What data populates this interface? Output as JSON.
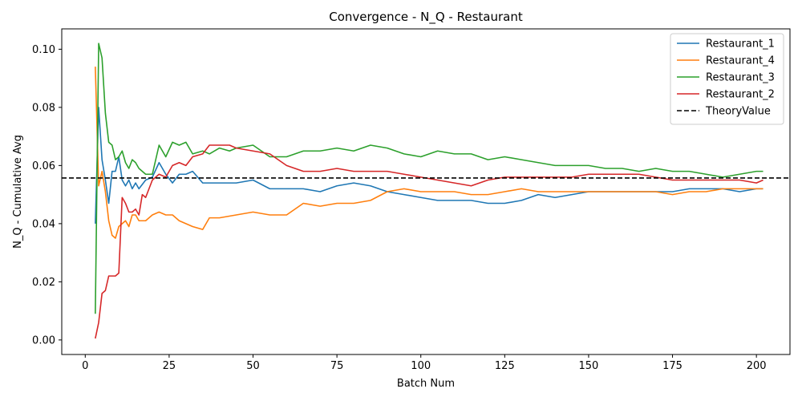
{
  "chart_data": {
    "type": "line",
    "title": "Convergence - N_Q - Restaurant",
    "xlabel": "Batch Num",
    "ylabel": "N_Q - Cumulative Avg",
    "xlim": [
      -7,
      210
    ],
    "ylim": [
      -0.005,
      0.107
    ],
    "xticks": [
      0,
      25,
      50,
      75,
      100,
      125,
      150,
      175,
      200
    ],
    "xtick_labels": [
      "0",
      "25",
      "50",
      "75",
      "100",
      "125",
      "150",
      "175",
      "200"
    ],
    "yticks": [
      0.0,
      0.02,
      0.04,
      0.06,
      0.08,
      0.1
    ],
    "ytick_labels": [
      "0.00",
      "0.02",
      "0.04",
      "0.06",
      "0.08",
      "0.10"
    ],
    "grid": false,
    "legend_position": "top-right",
    "reference_line": {
      "name": "TheoryValue",
      "y": 0.0557,
      "color": "#000000",
      "style": "dashed"
    },
    "series": [
      {
        "name": "Restaurant_1",
        "color": "#1f77b4",
        "x": [
          3,
          4,
          5,
          6,
          7,
          8,
          9,
          10,
          11,
          12,
          13,
          14,
          15,
          16,
          18,
          20,
          22,
          24,
          26,
          28,
          30,
          32,
          35,
          40,
          45,
          50,
          55,
          60,
          65,
          70,
          75,
          80,
          85,
          90,
          95,
          100,
          105,
          110,
          115,
          120,
          125,
          130,
          135,
          140,
          145,
          150,
          155,
          160,
          165,
          170,
          175,
          180,
          185,
          190,
          195,
          200,
          202
        ],
        "values": [
          0.04,
          0.08,
          0.062,
          0.055,
          0.047,
          0.058,
          0.058,
          0.063,
          0.055,
          0.053,
          0.055,
          0.052,
          0.054,
          0.052,
          0.055,
          0.056,
          0.061,
          0.057,
          0.054,
          0.057,
          0.057,
          0.058,
          0.054,
          0.054,
          0.054,
          0.055,
          0.052,
          0.052,
          0.052,
          0.051,
          0.053,
          0.054,
          0.053,
          0.051,
          0.05,
          0.049,
          0.048,
          0.048,
          0.048,
          0.047,
          0.047,
          0.048,
          0.05,
          0.049,
          0.05,
          0.051,
          0.051,
          0.051,
          0.051,
          0.051,
          0.051,
          0.052,
          0.052,
          0.052,
          0.051,
          0.052,
          0.052
        ]
      },
      {
        "name": "Restaurant_4",
        "color": "#ff7f0e",
        "x": [
          3,
          4,
          5,
          6,
          7,
          8,
          9,
          10,
          11,
          12,
          13,
          14,
          15,
          16,
          18,
          20,
          22,
          24,
          26,
          28,
          30,
          32,
          35,
          37,
          40,
          45,
          50,
          55,
          60,
          65,
          70,
          75,
          80,
          85,
          90,
          95,
          100,
          105,
          110,
          115,
          120,
          125,
          130,
          135,
          140,
          145,
          150,
          155,
          160,
          165,
          170,
          175,
          180,
          185,
          190,
          195,
          200,
          202
        ],
        "values": [
          0.094,
          0.053,
          0.058,
          0.051,
          0.041,
          0.036,
          0.035,
          0.039,
          0.04,
          0.041,
          0.039,
          0.043,
          0.043,
          0.041,
          0.041,
          0.043,
          0.044,
          0.043,
          0.043,
          0.041,
          0.04,
          0.039,
          0.038,
          0.042,
          0.042,
          0.043,
          0.044,
          0.043,
          0.043,
          0.047,
          0.046,
          0.047,
          0.047,
          0.048,
          0.051,
          0.052,
          0.051,
          0.051,
          0.051,
          0.05,
          0.05,
          0.051,
          0.052,
          0.051,
          0.051,
          0.051,
          0.051,
          0.051,
          0.051,
          0.051,
          0.051,
          0.05,
          0.051,
          0.051,
          0.052,
          0.052,
          0.052,
          0.052
        ]
      },
      {
        "name": "Restaurant_3",
        "color": "#2ca02c",
        "x": [
          3,
          4,
          5,
          6,
          7,
          8,
          9,
          10,
          11,
          12,
          13,
          14,
          15,
          16,
          18,
          20,
          22,
          24,
          26,
          28,
          30,
          32,
          35,
          37,
          40,
          43,
          45,
          50,
          55,
          60,
          65,
          70,
          75,
          80,
          85,
          90,
          95,
          100,
          105,
          110,
          115,
          120,
          125,
          130,
          135,
          140,
          145,
          150,
          155,
          160,
          165,
          170,
          175,
          180,
          185,
          190,
          195,
          200,
          202
        ],
        "values": [
          0.009,
          0.102,
          0.097,
          0.078,
          0.068,
          0.067,
          0.062,
          0.063,
          0.065,
          0.061,
          0.059,
          0.062,
          0.061,
          0.059,
          0.057,
          0.057,
          0.067,
          0.063,
          0.068,
          0.067,
          0.068,
          0.064,
          0.065,
          0.064,
          0.066,
          0.065,
          0.066,
          0.067,
          0.063,
          0.063,
          0.065,
          0.065,
          0.066,
          0.065,
          0.067,
          0.066,
          0.064,
          0.063,
          0.065,
          0.064,
          0.064,
          0.062,
          0.063,
          0.062,
          0.061,
          0.06,
          0.06,
          0.06,
          0.059,
          0.059,
          0.058,
          0.059,
          0.058,
          0.058,
          0.057,
          0.056,
          0.057,
          0.058,
          0.058
        ]
      },
      {
        "name": "Restaurant_2",
        "color": "#d62728",
        "x": [
          3,
          4,
          5,
          6,
          7,
          8,
          9,
          10,
          11,
          12,
          13,
          14,
          15,
          16,
          17,
          18,
          20,
          22,
          24,
          26,
          28,
          30,
          32,
          35,
          37,
          40,
          43,
          45,
          50,
          55,
          60,
          65,
          70,
          75,
          80,
          85,
          90,
          95,
          100,
          105,
          110,
          115,
          120,
          125,
          130,
          135,
          140,
          145,
          150,
          155,
          160,
          165,
          170,
          175,
          180,
          185,
          190,
          195,
          200,
          202
        ],
        "values": [
          0.0005,
          0.006,
          0.016,
          0.017,
          0.022,
          0.022,
          0.022,
          0.023,
          0.049,
          0.047,
          0.044,
          0.044,
          0.045,
          0.043,
          0.05,
          0.049,
          0.055,
          0.057,
          0.056,
          0.06,
          0.061,
          0.06,
          0.063,
          0.064,
          0.067,
          0.067,
          0.067,
          0.066,
          0.065,
          0.064,
          0.06,
          0.058,
          0.058,
          0.059,
          0.058,
          0.058,
          0.058,
          0.057,
          0.056,
          0.055,
          0.054,
          0.053,
          0.055,
          0.056,
          0.056,
          0.056,
          0.056,
          0.056,
          0.057,
          0.057,
          0.057,
          0.057,
          0.056,
          0.055,
          0.055,
          0.055,
          0.055,
          0.055,
          0.054,
          0.055
        ]
      }
    ]
  }
}
